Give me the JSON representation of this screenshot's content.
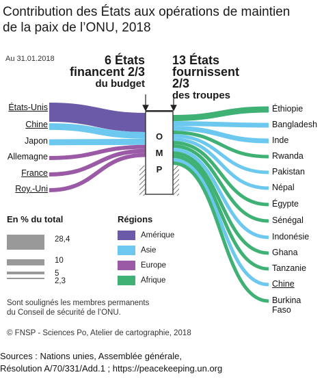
{
  "title_line1": "Contribution des États aux opérations de maintien",
  "title_line2": "de la paix de l’ONU, 2018",
  "date": "Au 31.01.2018",
  "header_left": {
    "count": "6 États",
    "line2": "financent 2/3",
    "line3": "du budget"
  },
  "header_right": {
    "count": "13 États",
    "line2": "fournissent 2/3",
    "line3": "des troupes"
  },
  "center_label": [
    "O",
    "M",
    "P"
  ],
  "left_countries": [
    {
      "name": "États-Unis",
      "underlined": true,
      "region": "Amérique",
      "value": 28.4
    },
    {
      "name": "Chine",
      "underlined": true,
      "region": "Asie",
      "value": 10
    },
    {
      "name": "Japon",
      "underlined": false,
      "region": "Asie",
      "value": 9
    },
    {
      "name": "Allemagne",
      "underlined": false,
      "region": "Europe",
      "value": 6
    },
    {
      "name": "France",
      "underlined": true,
      "region": "Europe",
      "value": 6
    },
    {
      "name": "Roy.-Uni",
      "underlined": true,
      "region": "Europe",
      "value": 6
    }
  ],
  "right_countries": [
    {
      "name": "Éthiopie",
      "underlined": false,
      "region": "Afrique"
    },
    {
      "name": "Bangladesh",
      "underlined": false,
      "region": "Asie"
    },
    {
      "name": "Inde",
      "underlined": false,
      "region": "Asie"
    },
    {
      "name": "Rwanda",
      "underlined": false,
      "region": "Afrique"
    },
    {
      "name": "Pakistan",
      "underlined": false,
      "region": "Asie"
    },
    {
      "name": "Népal",
      "underlined": false,
      "region": "Asie"
    },
    {
      "name": "Égypte",
      "underlined": false,
      "region": "Afrique"
    },
    {
      "name": "Sénégal",
      "underlined": false,
      "region": "Afrique"
    },
    {
      "name": "Indonésie",
      "underlined": false,
      "region": "Asie"
    },
    {
      "name": "Ghana",
      "underlined": false,
      "region": "Afrique"
    },
    {
      "name": "Tanzanie",
      "underlined": false,
      "region": "Afrique"
    },
    {
      "name": "Chine",
      "underlined": true,
      "region": "Asie"
    },
    {
      "name": "Burkina",
      "name2": "Faso",
      "underlined": false,
      "region": "Afrique"
    }
  ],
  "scale_legend": {
    "title": "En % du total",
    "values": [
      "28,4",
      "10",
      "5",
      "2,3"
    ]
  },
  "regions_legend": {
    "title": "Régions",
    "items": [
      "Amérique",
      "Asie",
      "Europe",
      "Afrique"
    ]
  },
  "colors": {
    "Amérique": "#6a5aa8",
    "Asie": "#6cc8ee",
    "Europe": "#9a5aa6",
    "Afrique": "#3fb174",
    "gray": "#999999"
  },
  "note_line1": "Sont soulignés les membres permanents",
  "note_line2": "du Conseil de sécurité de l’ONU.",
  "credit": "© FNSP - Sciences Po, Atelier de cartographie, 2018",
  "sources_line1": "Sources : Nations unies, Assemblée générale,",
  "sources_line2": "Résolution A/70/331/Add.1 ; https://peacekeeping.un.org"
}
